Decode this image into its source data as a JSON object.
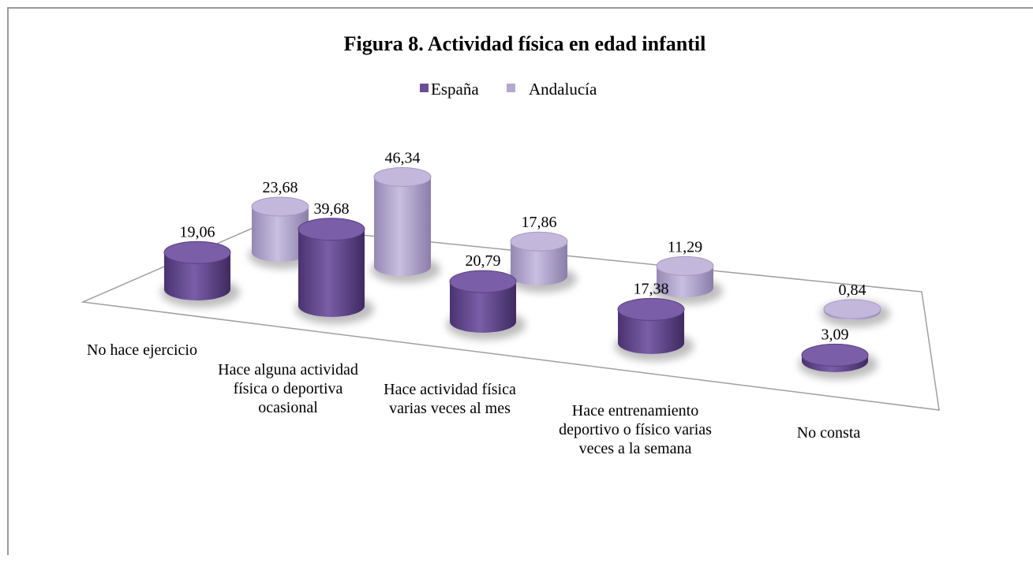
{
  "chart_data": {
    "type": "bar",
    "title": "Figura 8. Actividad física en edad infantil",
    "categories": [
      "No hace ejercicio",
      "Hace alguna actividad física o deportiva ocasional",
      "Hace actividad física varias veces al mes",
      "Hace entrenamiento deportivo o físico varias veces a la semana",
      "No consta"
    ],
    "series": [
      {
        "name": "España",
        "color": "#6b4f96",
        "values": [
          19.06,
          39.68,
          20.79,
          17.38,
          3.09
        ],
        "value_labels": [
          "19,06",
          "39,68",
          "20,79",
          "17,38",
          "3,09"
        ]
      },
      {
        "name": "Andalucía",
        "color": "#b4a8cf",
        "values": [
          23.68,
          46.34,
          17.86,
          11.29,
          0.84
        ],
        "value_labels": [
          "23,68",
          "46,34",
          "17,86",
          "11,29",
          "0,84"
        ]
      }
    ]
  }
}
